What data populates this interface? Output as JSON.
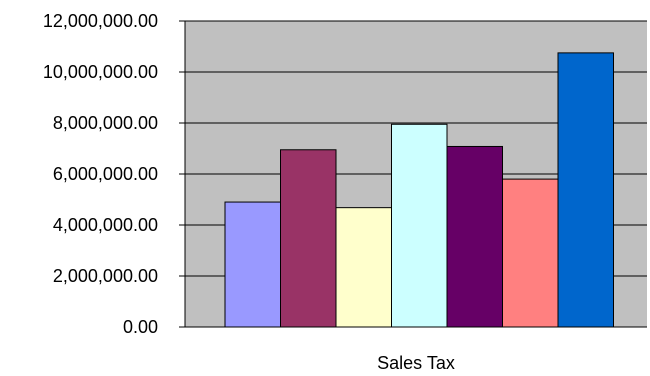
{
  "chart_data": {
    "type": "bar",
    "categories": [
      "Sales Tax"
    ],
    "xlabel": "Sales Tax",
    "ylabel": "",
    "ylim": [
      0,
      12000000
    ],
    "y_tick_values": [
      0,
      2000000,
      4000000,
      6000000,
      8000000,
      10000000,
      12000000
    ],
    "y_tick_labels": [
      "0.00",
      "2,000,000.00",
      "4,000,000.00",
      "6,000,000.00",
      "8,000,000.00",
      "10,000,000.00",
      "12,000,000.00"
    ],
    "grid": true,
    "plot_background": "#C0C0C0",
    "series": [
      {
        "values": [
          4900000
        ],
        "color": "#9999FF"
      },
      {
        "values": [
          6950000
        ],
        "color": "#993366"
      },
      {
        "values": [
          4680000
        ],
        "color": "#FFFFCC"
      },
      {
        "values": [
          7950000
        ],
        "color": "#CCFFFF"
      },
      {
        "values": [
          7080000
        ],
        "color": "#660066"
      },
      {
        "values": [
          5800000
        ],
        "color": "#FF8080"
      },
      {
        "values": [
          10750000
        ],
        "color": "#0066CC"
      }
    ]
  }
}
